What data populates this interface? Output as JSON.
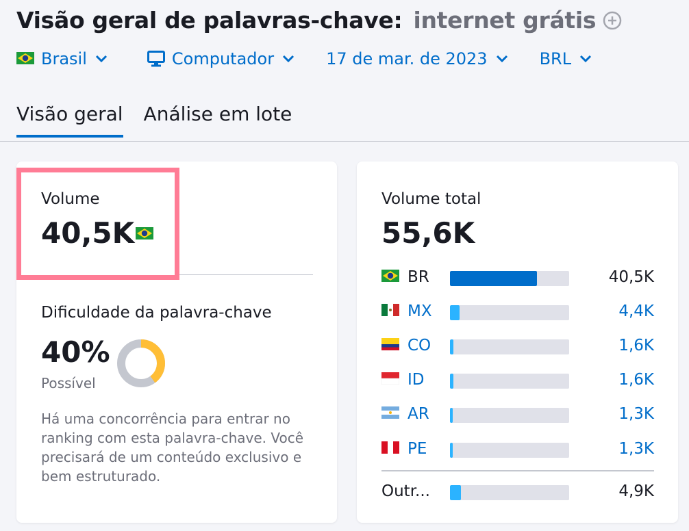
{
  "header": {
    "title": "Visão geral de palavras-chave:",
    "keyword": "internet grátis"
  },
  "filters": {
    "country": "Brasil",
    "device": "Computador",
    "date": "17 de mar. de 2023",
    "currency": "BRL"
  },
  "tabs": [
    "Visão geral",
    "Análise em lote"
  ],
  "volume_card": {
    "label": "Volume",
    "value": "40,5K",
    "difficulty_label": "Dificuldade da palavra-chave",
    "difficulty_value": "40%",
    "difficulty_percent": 40,
    "difficulty_text": "Possível",
    "description": "Há uma concorrência para entrar no ranking com esta palavra-chave. Você precisará de um conteúdo exclusivo e bem estruturado."
  },
  "total_card": {
    "label": "Volume total",
    "value": "55,6K",
    "countries": [
      {
        "code": "BR",
        "value": "40,5K",
        "fraction": 0.73
      },
      {
        "code": "MX",
        "value": "4,4K",
        "fraction": 0.08
      },
      {
        "code": "CO",
        "value": "1,6K",
        "fraction": 0.03
      },
      {
        "code": "ID",
        "value": "1,6K",
        "fraction": 0.03
      },
      {
        "code": "AR",
        "value": "1,3K",
        "fraction": 0.025
      },
      {
        "code": "PE",
        "value": "1,3K",
        "fraction": 0.025
      }
    ],
    "other": {
      "label": "Outr...",
      "value": "4,9K",
      "fraction": 0.09
    }
  },
  "colors": {
    "accent": "#006dca",
    "highlight": "#ff7c95",
    "donut_fill": "#ffbe36",
    "donut_track": "#c4c7cf",
    "bar_primary": "#006dca",
    "bar_secondary": "#2bb3ff"
  }
}
